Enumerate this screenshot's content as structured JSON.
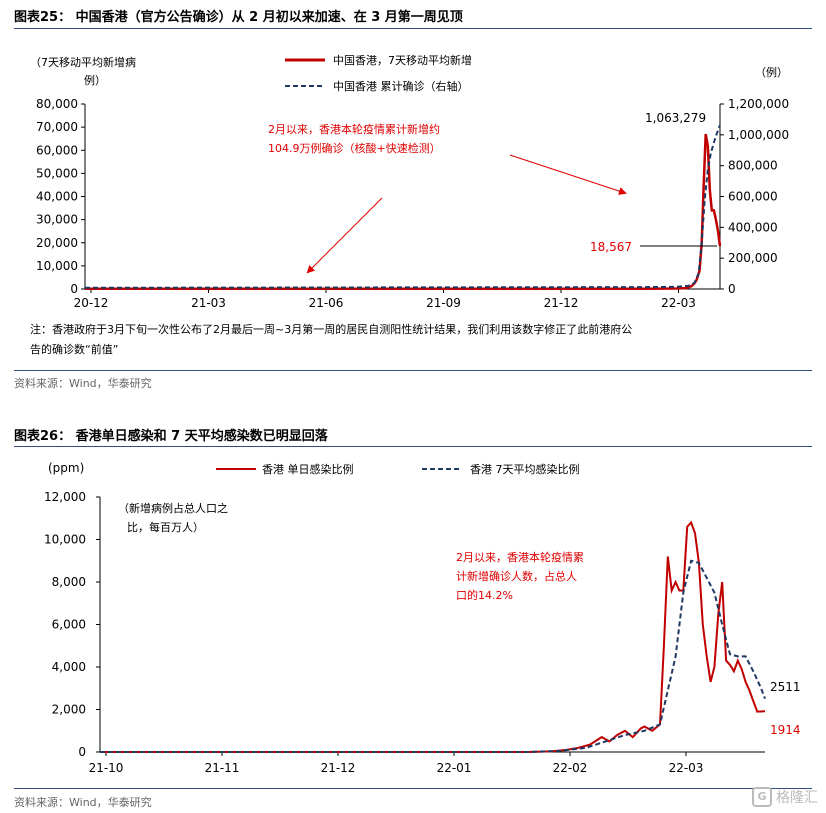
{
  "figure25": {
    "title": "图表25： 中国香港（官方公告确诊）从 2 月初以来加速、在 3 月第一周见顶",
    "note_line1": "注：香港政府于3月下旬一次性公布了2月最后一周~3月第一周的居民自测阳性统计结果，我们利用该数字修正了此前港府公",
    "note_line2": "告的确诊数“前值”",
    "source": "资料来源：Wind，华泰研究"
  },
  "figure26": {
    "title": "图表26： 香港单日感染和 7 天平均感染数已明显回落",
    "source": "资料来源：Wind，华泰研究"
  },
  "watermark": {
    "text": "格隆汇",
    "logo": "G"
  },
  "chart_data": [
    {
      "type": "line",
      "y_axis_label_left_lines": [
        "（7天移动平均新增病",
        "例）"
      ],
      "y_axis_label_right": "（例）",
      "x_ticks": [
        "20-12",
        "21-03",
        "21-06",
        "21-09",
        "21-12",
        "22-03"
      ],
      "y_ticks_left": [
        "80,000",
        "70,000",
        "60,000",
        "50,000",
        "40,000",
        "30,000",
        "20,000",
        "10,000",
        "0"
      ],
      "y_ticks_right": [
        "1,200,000",
        "1,000,000",
        "800,000",
        "600,000",
        "400,000",
        "200,000",
        "0"
      ],
      "ylim_left": [
        0,
        80000
      ],
      "ylim_right": [
        0,
        1200000
      ],
      "colors": {
        "series1": "#c00000",
        "series2": "#1f3864",
        "annotation": "#e00000"
      },
      "series": [
        {
          "name": "中国香港，7天移动平均新增",
          "axis": "left",
          "style": "solid",
          "points": [
            [
              0,
              100
            ],
            [
              550,
              120
            ],
            [
              580,
              200
            ],
            [
              590,
              400
            ],
            [
              595,
              1200
            ],
            [
              598,
              2500
            ],
            [
              600,
              4000
            ],
            [
              603,
              8000
            ],
            [
              605,
              20000
            ],
            [
              607,
              45000
            ],
            [
              609,
              67000
            ],
            [
              611,
              62000
            ],
            [
              613,
              43000
            ],
            [
              615,
              34000
            ],
            [
              617,
              34000
            ],
            [
              619,
              30000
            ],
            [
              621,
              25000
            ],
            [
              623,
              18567
            ]
          ]
        },
        {
          "name": "中国香港  累计确诊（右轴）",
          "axis": "right",
          "style": "dashed",
          "points": [
            [
              0,
              8000
            ],
            [
              550,
              12500
            ],
            [
              580,
              14000
            ],
            [
              592,
              20000
            ],
            [
              598,
              40000
            ],
            [
              602,
              100000
            ],
            [
              605,
              300000
            ],
            [
              608,
              580000
            ],
            [
              611,
              770000
            ],
            [
              614,
              880000
            ],
            [
              617,
              950000
            ],
            [
              620,
              1010000
            ],
            [
              623,
              1063279
            ]
          ]
        }
      ],
      "labels": {
        "max_cumulative": "1,063,279",
        "last_value": "18,567",
        "annotation_line1": "2月以来，香港本轮疫情累计新增约",
        "annotation_line2": "104.9万例确诊（核酸+快速检测）"
      }
    },
    {
      "type": "line",
      "y_axis_label": "(ppm)",
      "y_axis_note_lines": [
        "（新增病例占总人口之",
        "比，每百万人）"
      ],
      "x_ticks": [
        "21-10",
        "21-11",
        "21-12",
        "22-01",
        "22-02",
        "22-03"
      ],
      "y_ticks": [
        "12,000",
        "10,000",
        "8,000",
        "6,000",
        "4,000",
        "2,000",
        "0"
      ],
      "ylim": [
        0,
        12000
      ],
      "colors": {
        "series1": "#c00000",
        "series2": "#1f3864",
        "annotation": "#e00000"
      },
      "series": [
        {
          "name": "香港  单日感染比例",
          "style": "solid",
          "points": [
            [
              0,
              0
            ],
            [
              110,
              0
            ],
            [
              116,
              30
            ],
            [
              120,
              100
            ],
            [
              123,
              200
            ],
            [
              126,
              350
            ],
            [
              129,
              700
            ],
            [
              131,
              500
            ],
            [
              133,
              800
            ],
            [
              135,
              1000
            ],
            [
              137,
              700
            ],
            [
              139,
              1100
            ],
            [
              140,
              1200
            ],
            [
              142,
              1000
            ],
            [
              144,
              1300
            ],
            [
              145,
              5000
            ],
            [
              146,
              9200
            ],
            [
              147,
              7600
            ],
            [
              148,
              8000
            ],
            [
              149,
              7600
            ],
            [
              150,
              7600
            ],
            [
              151,
              10600
            ],
            [
              152,
              10800
            ],
            [
              153,
              10300
            ],
            [
              154,
              8900
            ],
            [
              155,
              6000
            ],
            [
              156,
              4500
            ],
            [
              157,
              3300
            ],
            [
              158,
              4000
            ],
            [
              159,
              6500
            ],
            [
              160,
              8000
            ],
            [
              161,
              4300
            ],
            [
              162,
              4100
            ],
            [
              163,
              3800
            ],
            [
              164,
              4300
            ],
            [
              165,
              3900
            ],
            [
              166,
              3300
            ],
            [
              167,
              2900
            ],
            [
              168,
              2400
            ],
            [
              169,
              1900
            ],
            [
              171,
              1914
            ]
          ]
        },
        {
          "name": "香港  7天平均感染比例",
          "style": "dashed",
          "points": [
            [
              0,
              0
            ],
            [
              110,
              0
            ],
            [
              118,
              50
            ],
            [
              125,
              200
            ],
            [
              130,
              500
            ],
            [
              135,
              800
            ],
            [
              140,
              1000
            ],
            [
              144,
              1300
            ],
            [
              148,
              4500
            ],
            [
              150,
              7500
            ],
            [
              152,
              9000
            ],
            [
              154,
              8900
            ],
            [
              156,
              8200
            ],
            [
              158,
              7500
            ],
            [
              160,
              6000
            ],
            [
              162,
              4600
            ],
            [
              164,
              4500
            ],
            [
              166,
              4500
            ],
            [
              168,
              3800
            ],
            [
              170,
              3000
            ],
            [
              171,
              2511
            ]
          ]
        }
      ],
      "labels": {
        "last_avg": "2511",
        "last_daily": "1914",
        "annotation_line1": "2月以来，香港本轮疫情累",
        "annotation_line2": "计新增确诊人数，占总人",
        "annotation_line3": "口的14.2%"
      }
    }
  ]
}
